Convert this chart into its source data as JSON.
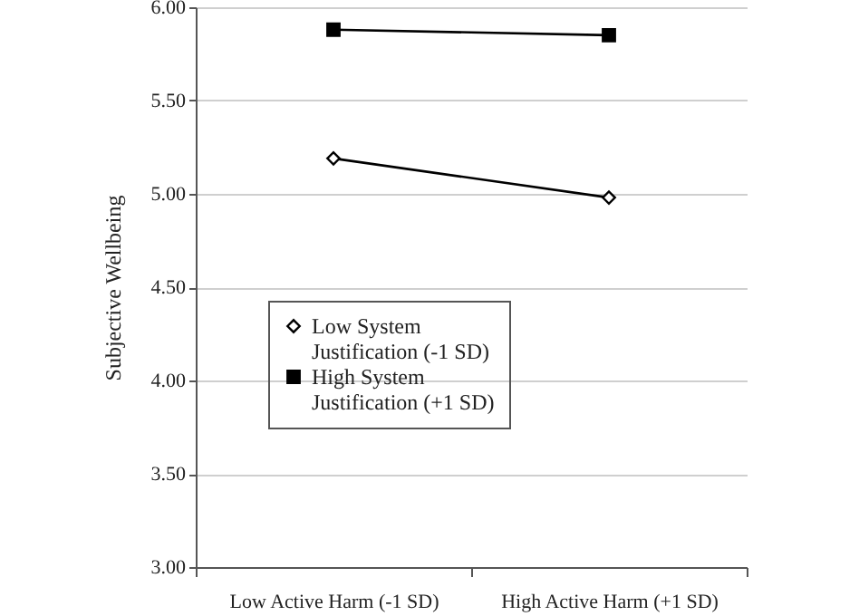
{
  "chart_data": {
    "type": "line",
    "ylabel": "Subjective Wellbeing",
    "categories": [
      "Low Active Harm (-1 SD)",
      "High Active Harm (+1 SD)"
    ],
    "series": [
      {
        "name": "Low System Justification (-1 SD)",
        "color": "#000000",
        "marker": "diamond",
        "values": [
          5.19,
          4.98
        ]
      },
      {
        "name": "High System Justification (+1 SD)",
        "color": "#000000",
        "marker": "square",
        "values": [
          5.88,
          5.85
        ]
      }
    ],
    "ylim": [
      3,
      6
    ],
    "yticks": [
      {
        "value": 3,
        "label": "3.00"
      },
      {
        "value": 3.5,
        "label": "3.50"
      },
      {
        "value": 4,
        "label": "4.00"
      },
      {
        "value": 4.5,
        "label": "4.50"
      },
      {
        "value": 5,
        "label": "5.00"
      },
      {
        "value": 5.5,
        "label": "5.50"
      },
      {
        "value": 6,
        "label": "6.00"
      }
    ],
    "grid": "y",
    "legend": "left",
    "line_style": "solid"
  }
}
